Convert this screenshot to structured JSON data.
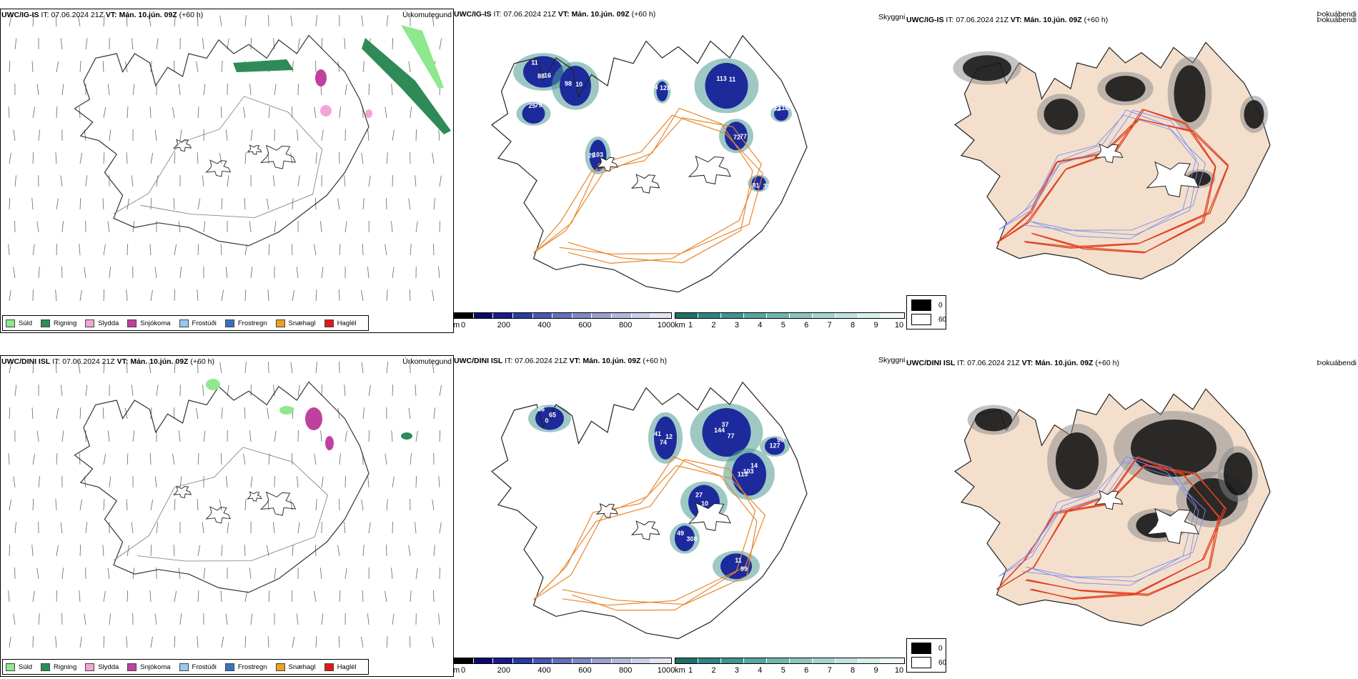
{
  "rows": [
    {
      "id": "top",
      "precip": {
        "model": "UWC/IG-IS",
        "it_label": "IT:",
        "it_value": "07.06.2024 21Z",
        "vt_label": "VT:",
        "vt_value": "Mán. 10.jún. 09Z",
        "lead": "(+60 h)",
        "title_right": "Úrkomutegund"
      },
      "cloud": {
        "model": "UWC/IG-IS",
        "it_label": "IT:",
        "it_value": "07.06.2024 21Z",
        "vt_label": "VT:",
        "vt_value": "Mán. 10.jún. 09Z",
        "lead": "(+60 h)",
        "labels": [
          "11",
          "10",
          "25",
          "29",
          "11",
          "72",
          "32",
          "33",
          "128",
          "88",
          "98",
          "79",
          "103",
          "113",
          "77",
          "118",
          "81",
          "54",
          "16"
        ]
      },
      "fog": {
        "skyggni": "Skyggni",
        "model": "UWC/IG-IS",
        "it_label": "IT:",
        "it_value": "07.06.2024 21Z",
        "vt_label": "VT:",
        "vt_value": "Mán. 10.jún. 09Z",
        "lead": "(+60 h)",
        "title_right": "Þokuábendi"
      }
    },
    {
      "id": "bottom",
      "precip": {
        "model": "UWC/DINI ISL",
        "it_label": "IT:",
        "it_value": "07.06.2024 21Z",
        "vt_label": "VT:",
        "vt_value": "Mán. 10.jún. 09Z",
        "lead": "(+60 h)",
        "title_right": "Úrkomutegund"
      },
      "cloud": {
        "model": "UWC/DINI ISL",
        "it_label": "IT:",
        "it_value": "07.06.2024 21Z",
        "vt_label": "VT:",
        "vt_value": "Mán. 10.jún. 09Z",
        "lead": "(+60 h)",
        "labels": [
          "66",
          "12",
          "37",
          "113",
          "90",
          "10",
          "49",
          "99",
          "65",
          "74",
          "144",
          "14",
          "127",
          "27",
          "308",
          "11",
          "0",
          "41",
          "77",
          "103"
        ]
      },
      "fog": {
        "skyggni": "Skyggni",
        "model": "UWC/DINI ISL",
        "it_label": "IT:",
        "it_value": "07.06.2024 21Z",
        "vt_label": "VT:",
        "vt_value": "Mán. 10.jún. 09Z",
        "lead": "(+60 h)",
        "title_right": "Þokuábendi"
      }
    }
  ],
  "precip_legend": [
    {
      "label": "Súld",
      "color": "#8ee88e"
    },
    {
      "label": "Rigning",
      "color": "#2e8b57"
    },
    {
      "label": "Slydda",
      "color": "#f2a6d6"
    },
    {
      "label": "Snjókoma",
      "color": "#c040a0"
    },
    {
      "label": "Frostúði",
      "color": "#9ac8f0"
    },
    {
      "label": "Frostregn",
      "color": "#3a70c0"
    },
    {
      "label": "Snæhagl",
      "color": "#f0a020"
    },
    {
      "label": "Haglél",
      "color": "#e01818"
    }
  ],
  "height_bar": {
    "unit": "m",
    "ticks": [
      "0",
      "200",
      "400",
      "600",
      "800",
      "1000"
    ],
    "colors": [
      "#000000",
      "#0a0a6a",
      "#1a1a8a",
      "#2a3aa0",
      "#4a56b0",
      "#6470b8",
      "#7e88c4",
      "#98a0d0",
      "#b2b8dc",
      "#ccd0e8",
      "#e2e4f2"
    ]
  },
  "km_bar": {
    "unit": "km",
    "ticks": [
      "1",
      "2",
      "3",
      "4",
      "5",
      "6",
      "7",
      "8",
      "9",
      "10"
    ],
    "colors": [
      "#1f6f6a",
      "#2e8580",
      "#3e9590",
      "#58a5a0",
      "#72b5b0",
      "#8cc5c0",
      "#a6d5d0",
      "#c0e3df",
      "#d8efec",
      "#eef8f6"
    ]
  },
  "skyggni_legend": [
    {
      "label": "0",
      "color": "#000000"
    },
    {
      "label": "60",
      "color": "#ffffff"
    }
  ],
  "colors": {
    "land_fill": "#f3dfcc",
    "road_orange": "#e8862c",
    "road_red": "#e04020",
    "river_blue": "#7a8cf0",
    "cloud_dark": "#1c2a9c",
    "cloud_teal": "#4f9a94"
  }
}
